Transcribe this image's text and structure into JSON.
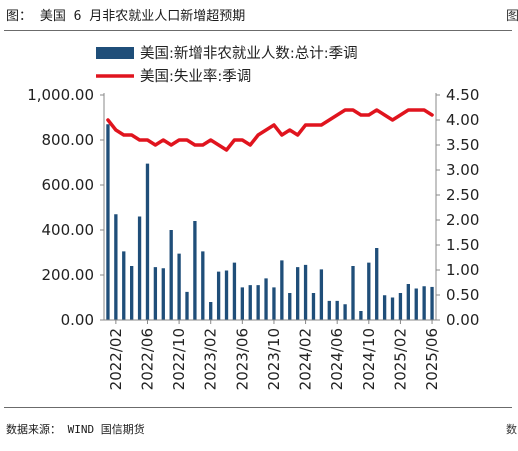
{
  "figure": {
    "title": "图： 美国 6 月非农就业人口新增超预期",
    "source": "数据来源： WIND  国信期货",
    "edge_mark_top": "图",
    "edge_mark_bottom": "数"
  },
  "colors": {
    "bar": "#1f4e79",
    "line": "#e0141e",
    "text": "#222222",
    "rule": "#6b6b6b"
  },
  "chart_data": {
    "type": "bar+line",
    "title": "",
    "grid": false,
    "legend_position": "top-left",
    "x_tick_labels": [
      "2022/02",
      "2022/06",
      "2022/10",
      "2023/02",
      "2023/06",
      "2023/10",
      "2024/02",
      "2024/06",
      "2024/10",
      "2025/02",
      "2025/06"
    ],
    "left_axis": {
      "lim": [
        0,
        1000
      ],
      "ticks": [
        "0.00",
        "200.00",
        "400.00",
        "600.00",
        "800.00",
        "1,000.00"
      ]
    },
    "right_axis": {
      "lim": [
        0,
        4.5
      ],
      "ticks": [
        "0.00",
        "0.50",
        "1.00",
        "1.50",
        "2.00",
        "2.50",
        "3.00",
        "3.50",
        "4.00",
        "4.50"
      ]
    },
    "categories": [
      "2022/01",
      "2022/02",
      "2022/03",
      "2022/04",
      "2022/05",
      "2022/06",
      "2022/07",
      "2022/08",
      "2022/09",
      "2022/10",
      "2022/11",
      "2022/12",
      "2023/01",
      "2023/02",
      "2023/03",
      "2023/04",
      "2023/05",
      "2023/06",
      "2023/07",
      "2023/08",
      "2023/09",
      "2023/10",
      "2023/11",
      "2023/12",
      "2024/01",
      "2024/02",
      "2024/03",
      "2024/04",
      "2024/05",
      "2024/06",
      "2024/07",
      "2024/08",
      "2024/09",
      "2024/10",
      "2024/11",
      "2024/12",
      "2025/01",
      "2025/02",
      "2025/03",
      "2025/04",
      "2025/05",
      "2025/06"
    ],
    "series": [
      {
        "name": "美国:新增非农就业人数:总计:季调",
        "kind": "bar",
        "axis": "left",
        "values": [
          870,
          470,
          305,
          240,
          460,
          695,
          235,
          230,
          400,
          295,
          125,
          440,
          305,
          80,
          215,
          220,
          255,
          145,
          155,
          155,
          185,
          145,
          265,
          120,
          235,
          245,
          120,
          225,
          85,
          85,
          70,
          240,
          40,
          255,
          320,
          110,
          100,
          120,
          160,
          140,
          150,
          147
        ]
      },
      {
        "name": "美国:失业率:季调",
        "kind": "line",
        "axis": "right",
        "values": [
          4.0,
          3.8,
          3.7,
          3.7,
          3.6,
          3.6,
          3.5,
          3.6,
          3.5,
          3.6,
          3.6,
          3.5,
          3.5,
          3.6,
          3.5,
          3.4,
          3.6,
          3.6,
          3.5,
          3.7,
          3.8,
          3.9,
          3.7,
          3.8,
          3.7,
          3.9,
          3.9,
          3.9,
          4.0,
          4.1,
          4.2,
          4.2,
          4.1,
          4.1,
          4.2,
          4.1,
          4.0,
          4.1,
          4.2,
          4.2,
          4.2,
          4.1
        ]
      }
    ]
  }
}
